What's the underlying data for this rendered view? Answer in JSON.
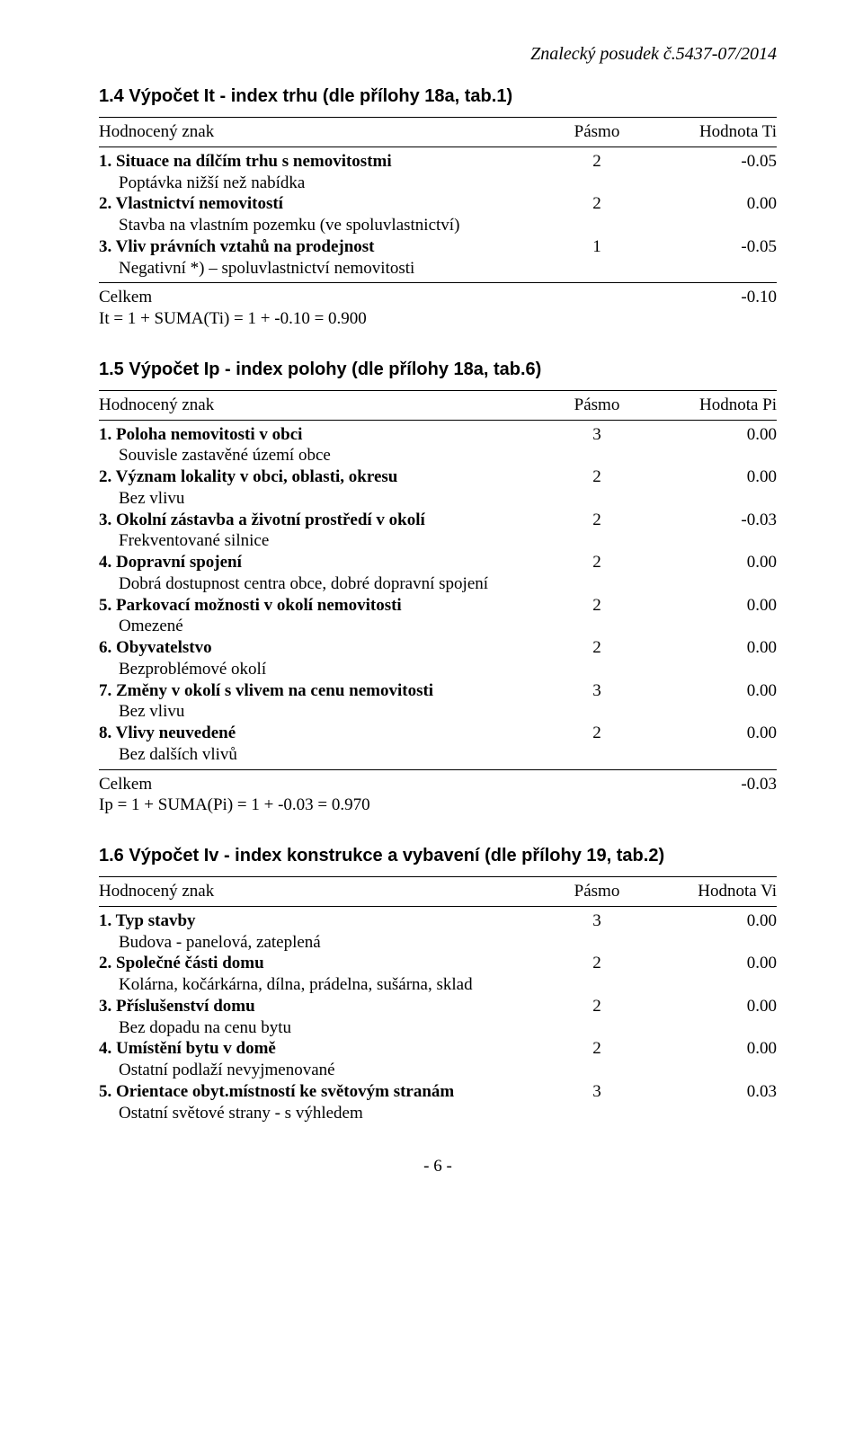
{
  "header": "Znalecký posudek č.5437-07/2014",
  "section14": {
    "title": "1.4 Výpočet It - index trhu (dle přílohy 18a, tab.1)",
    "head": {
      "c1": "Hodnocený znak",
      "c2": "Pásmo",
      "c3": "Hodnota Ti"
    },
    "rows": [
      {
        "name": "1. Situace na dílčím trhu s nemovitostmi",
        "sub": "Poptávka nižší než nabídka",
        "p": "2",
        "v": "-0.05"
      },
      {
        "name": "2. Vlastnictví nemovitostí",
        "sub": "Stavba na vlastním pozemku (ve spoluvlastnictví)",
        "p": "2",
        "v": "0.00"
      },
      {
        "name": "3. Vliv právních vztahů na prodejnost",
        "sub": "Negativní *) – spoluvlastnictví nemovitosti",
        "p": "1",
        "v": "-0.05"
      }
    ],
    "total_label": "Celkem",
    "total_val": "-0.10",
    "formula": "It = 1 + SUMA(Ti) = 1 + -0.10 = 0.900"
  },
  "section15": {
    "title": "1.5 Výpočet Ip - index polohy (dle přílohy 18a, tab.6)",
    "head": {
      "c1": "Hodnocený znak",
      "c2": "Pásmo",
      "c3": "Hodnota Pi"
    },
    "rows": [
      {
        "name": "1. Poloha nemovitosti v obci",
        "sub": "Souvisle zastavěné území obce",
        "p": "3",
        "v": "0.00"
      },
      {
        "name": "2. Význam lokality v obci, oblasti, okresu",
        "sub": "Bez vlivu",
        "p": "2",
        "v": "0.00"
      },
      {
        "name": "3. Okolní zástavba a životní prostředí v okolí",
        "sub": "Frekventované silnice",
        "p": "2",
        "v": "-0.03"
      },
      {
        "name": "4. Dopravní spojení",
        "sub": "Dobrá dostupnost centra obce, dobré dopravní spojení",
        "p": "2",
        "v": "0.00"
      },
      {
        "name": "5. Parkovací možnosti v okolí nemovitosti",
        "sub": "Omezené",
        "p": "2",
        "v": "0.00"
      },
      {
        "name": "6. Obyvatelstvo",
        "sub": "Bezproblémové okolí",
        "p": "2",
        "v": "0.00"
      },
      {
        "name": "7. Změny v okolí s vlivem na cenu nemovitosti",
        "sub": "Bez vlivu",
        "p": "3",
        "v": "0.00"
      },
      {
        "name": "8. Vlivy neuvedené",
        "sub": "Bez dalších vlivů",
        "p": "2",
        "v": "0.00"
      }
    ],
    "total_label": "Celkem",
    "total_val": "-0.03",
    "formula": "Ip = 1 + SUMA(Pi) = 1 + -0.03 = 0.970"
  },
  "section16": {
    "title": "1.6 Výpočet Iv - index konstrukce a vybavení (dle přílohy 19, tab.2)",
    "head": {
      "c1": "Hodnocený znak",
      "c2": "Pásmo",
      "c3": "Hodnota Vi"
    },
    "rows": [
      {
        "name": "1. Typ stavby",
        "sub": "Budova - panelová, zateplená",
        "p": "3",
        "v": "0.00"
      },
      {
        "name": "2. Společné části domu",
        "sub": "Kolárna, kočárkárna, dílna, prádelna, sušárna, sklad",
        "p": "2",
        "v": "0.00"
      },
      {
        "name": "3. Příslušenství domu",
        "sub": "Bez dopadu na cenu bytu",
        "p": "2",
        "v": "0.00"
      },
      {
        "name": "4. Umístění bytu v domě",
        "sub": "Ostatní podlaží nevyjmenované",
        "p": "2",
        "v": "0.00"
      },
      {
        "name": "5. Orientace obyt.místností ke světovým stranám",
        "sub": "Ostatní světové strany - s výhledem",
        "p": "3",
        "v": "0.03"
      }
    ]
  },
  "page_number": "- 6 -"
}
